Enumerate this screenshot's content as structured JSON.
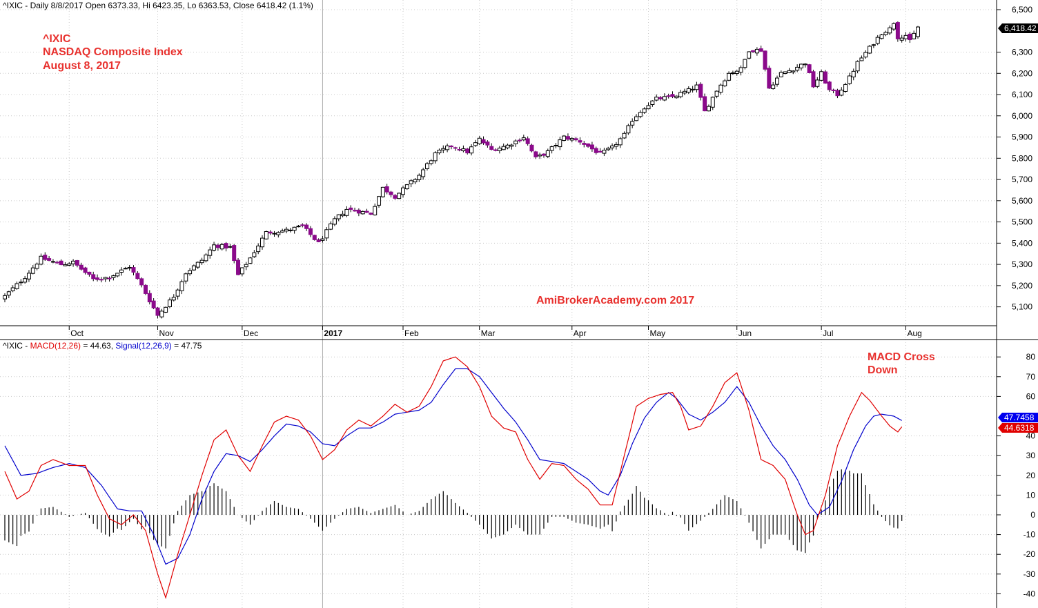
{
  "colors": {
    "candle_down": "#8b0a8b",
    "candle_up": "#ffffff",
    "candle_edge": "#000000",
    "annotation_red": "#e8312e",
    "macd_line": "#e00000",
    "signal_line": "#0000cc",
    "histogram": "#000000",
    "grid": "#c8c8c8",
    "label_macd_bg": "#e00000",
    "label_signal_bg": "#0000ee",
    "label_price_bg": "#000000"
  },
  "header": {
    "price_info": "^IXIC - Daily 8/8/2017 Open 6373.33, Hi 6423.35, Lo 6363.53, Close 6418.42 (1.1%)",
    "macd_prefix": "^IXIC - ",
    "macd_name": "MACD(12,26)",
    "macd_value": " = 44.63, ",
    "signal_name": "Signal(12,26,9)",
    "signal_value": " = 47.75"
  },
  "annotations": {
    "symbol": "^IXIC",
    "index_name": "NASDAQ Composite Index",
    "date": "August 8, 2017",
    "watermark": "AmiBrokerAcademy.com  2017",
    "macd_note_line1": "MACD Cross",
    "macd_note_line2": "Down"
  },
  "last_labels": {
    "price": "6,418.42",
    "signal": "47.7458",
    "macd": "44.6318"
  },
  "chart_data": [
    {
      "type": "candlestick",
      "title": "^IXIC - Daily 8/8/2017 Open 6373.33, Hi 6423.35, Lo 6363.53, Close 6418.42 (1.1%)",
      "ylim": [
        5020,
        6560
      ],
      "y_ticks": [
        5100,
        5200,
        5300,
        5400,
        5500,
        5600,
        5700,
        5800,
        5900,
        6000,
        6100,
        6200,
        6300,
        6500
      ],
      "y_tick_labels": [
        "5,100",
        "5,200",
        "5,300",
        "5,400",
        "5,500",
        "5,600",
        "5,700",
        "5,800",
        "5,900",
        "6,000",
        "6,100",
        "6,200",
        "6,300",
        "6,500"
      ],
      "month_labels": [
        {
          "label": "Oct",
          "index": 16
        },
        {
          "label": "Nov",
          "index": 38
        },
        {
          "label": "Dec",
          "index": 59
        },
        {
          "label": "2017",
          "index": 79
        },
        {
          "label": "Feb",
          "index": 99
        },
        {
          "label": "Mar",
          "index": 118
        },
        {
          "label": "Apr",
          "index": 141
        },
        {
          "label": "May",
          "index": 160
        },
        {
          "label": "Jun",
          "index": 182
        },
        {
          "label": "Jul",
          "index": 203
        },
        {
          "label": "Aug",
          "index": 224
        }
      ],
      "year_separator_index": 79,
      "anchors": [
        {
          "i": 0,
          "c": 5150
        },
        {
          "i": 5,
          "c": 5240
        },
        {
          "i": 9,
          "c": 5330
        },
        {
          "i": 14,
          "c": 5300
        },
        {
          "i": 17,
          "c": 5310
        },
        {
          "i": 22,
          "c": 5230
        },
        {
          "i": 26,
          "c": 5240
        },
        {
          "i": 31,
          "c": 5290
        },
        {
          "i": 34,
          "c": 5200
        },
        {
          "i": 38,
          "c": 5060
        },
        {
          "i": 42,
          "c": 5150
        },
        {
          "i": 45,
          "c": 5260
        },
        {
          "i": 49,
          "c": 5320
        },
        {
          "i": 52,
          "c": 5390
        },
        {
          "i": 56,
          "c": 5380
        },
        {
          "i": 58,
          "c": 5250
        },
        {
          "i": 61,
          "c": 5330
        },
        {
          "i": 65,
          "c": 5450
        },
        {
          "i": 70,
          "c": 5460
        },
        {
          "i": 74,
          "c": 5480
        },
        {
          "i": 78,
          "c": 5400
        },
        {
          "i": 82,
          "c": 5510
        },
        {
          "i": 85,
          "c": 5560
        },
        {
          "i": 88,
          "c": 5550
        },
        {
          "i": 91,
          "c": 5540
        },
        {
          "i": 94,
          "c": 5660
        },
        {
          "i": 97,
          "c": 5620
        },
        {
          "i": 100,
          "c": 5670
        },
        {
          "i": 103,
          "c": 5720
        },
        {
          "i": 107,
          "c": 5820
        },
        {
          "i": 111,
          "c": 5860
        },
        {
          "i": 115,
          "c": 5830
        },
        {
          "i": 118,
          "c": 5890
        },
        {
          "i": 121,
          "c": 5840
        },
        {
          "i": 125,
          "c": 5860
        },
        {
          "i": 129,
          "c": 5900
        },
        {
          "i": 132,
          "c": 5800
        },
        {
          "i": 135,
          "c": 5830
        },
        {
          "i": 139,
          "c": 5900
        },
        {
          "i": 143,
          "c": 5880
        },
        {
          "i": 148,
          "c": 5820
        },
        {
          "i": 151,
          "c": 5850
        },
        {
          "i": 154,
          "c": 5910
        },
        {
          "i": 156,
          "c": 5980
        },
        {
          "i": 159,
          "c": 6040
        },
        {
          "i": 162,
          "c": 6080
        },
        {
          "i": 166,
          "c": 6090
        },
        {
          "i": 170,
          "c": 6120
        },
        {
          "i": 172,
          "c": 6140
        },
        {
          "i": 174,
          "c": 6020
        },
        {
          "i": 177,
          "c": 6120
        },
        {
          "i": 180,
          "c": 6200
        },
        {
          "i": 183,
          "c": 6220
        },
        {
          "i": 185,
          "c": 6310
        },
        {
          "i": 188,
          "c": 6310
        },
        {
          "i": 190,
          "c": 6130
        },
        {
          "i": 193,
          "c": 6200
        },
        {
          "i": 196,
          "c": 6220
        },
        {
          "i": 199,
          "c": 6250
        },
        {
          "i": 201,
          "c": 6140
        },
        {
          "i": 203,
          "c": 6200
        },
        {
          "i": 205,
          "c": 6120
        },
        {
          "i": 207,
          "c": 6100
        },
        {
          "i": 210,
          "c": 6180
        },
        {
          "i": 212,
          "c": 6250
        },
        {
          "i": 215,
          "c": 6320
        },
        {
          "i": 218,
          "c": 6390
        },
        {
          "i": 220,
          "c": 6410
        },
        {
          "i": 221,
          "c": 6440
        },
        {
          "i": 222,
          "c": 6370
        },
        {
          "i": 224,
          "c": 6380
        },
        {
          "i": 225,
          "c": 6350
        },
        {
          "i": 227,
          "c": 6418
        }
      ],
      "last_bar": {
        "open": 6373.33,
        "high": 6423.35,
        "low": 6363.53,
        "close": 6418.42
      }
    },
    {
      "type": "line",
      "title": "^IXIC - MACD(12,26) = 44.63, Signal(12,26,9) = 47.75",
      "ylim": [
        -45,
        85
      ],
      "y_ticks": [
        -40,
        -30,
        -20,
        -10,
        0,
        10,
        20,
        30,
        40,
        60,
        70,
        80
      ],
      "series": [
        {
          "name": "MACD(12,26)",
          "anchors": [
            {
              "i": 0,
              "v": 22
            },
            {
              "i": 3,
              "v": 8
            },
            {
              "i": 6,
              "v": 12
            },
            {
              "i": 9,
              "v": 25
            },
            {
              "i": 12,
              "v": 28
            },
            {
              "i": 16,
              "v": 25
            },
            {
              "i": 20,
              "v": 25
            },
            {
              "i": 23,
              "v": 10
            },
            {
              "i": 26,
              "v": -2
            },
            {
              "i": 29,
              "v": -5
            },
            {
              "i": 32,
              "v": 0
            },
            {
              "i": 35,
              "v": -8
            },
            {
              "i": 38,
              "v": -30
            },
            {
              "i": 40,
              "v": -42
            },
            {
              "i": 43,
              "v": -20
            },
            {
              "i": 46,
              "v": 0
            },
            {
              "i": 49,
              "v": 20
            },
            {
              "i": 52,
              "v": 38
            },
            {
              "i": 55,
              "v": 43
            },
            {
              "i": 58,
              "v": 30
            },
            {
              "i": 61,
              "v": 22
            },
            {
              "i": 64,
              "v": 35
            },
            {
              "i": 67,
              "v": 47
            },
            {
              "i": 70,
              "v": 50
            },
            {
              "i": 73,
              "v": 48
            },
            {
              "i": 76,
              "v": 40
            },
            {
              "i": 79,
              "v": 28
            },
            {
              "i": 82,
              "v": 33
            },
            {
              "i": 85,
              "v": 43
            },
            {
              "i": 88,
              "v": 48
            },
            {
              "i": 91,
              "v": 45
            },
            {
              "i": 94,
              "v": 50
            },
            {
              "i": 97,
              "v": 56
            },
            {
              "i": 100,
              "v": 52
            },
            {
              "i": 103,
              "v": 55
            },
            {
              "i": 106,
              "v": 65
            },
            {
              "i": 109,
              "v": 78
            },
            {
              "i": 112,
              "v": 80
            },
            {
              "i": 115,
              "v": 75
            },
            {
              "i": 118,
              "v": 65
            },
            {
              "i": 121,
              "v": 50
            },
            {
              "i": 124,
              "v": 44
            },
            {
              "i": 127,
              "v": 42
            },
            {
              "i": 130,
              "v": 28
            },
            {
              "i": 133,
              "v": 18
            },
            {
              "i": 136,
              "v": 26
            },
            {
              "i": 139,
              "v": 25
            },
            {
              "i": 142,
              "v": 18
            },
            {
              "i": 145,
              "v": 13
            },
            {
              "i": 148,
              "v": 5
            },
            {
              "i": 151,
              "v": 5
            },
            {
              "i": 154,
              "v": 30
            },
            {
              "i": 157,
              "v": 55
            },
            {
              "i": 160,
              "v": 59
            },
            {
              "i": 163,
              "v": 61
            },
            {
              "i": 166,
              "v": 62
            },
            {
              "i": 168,
              "v": 55
            },
            {
              "i": 170,
              "v": 43
            },
            {
              "i": 173,
              "v": 45
            },
            {
              "i": 176,
              "v": 55
            },
            {
              "i": 179,
              "v": 67
            },
            {
              "i": 182,
              "v": 72
            },
            {
              "i": 185,
              "v": 53
            },
            {
              "i": 188,
              "v": 28
            },
            {
              "i": 191,
              "v": 25
            },
            {
              "i": 194,
              "v": 18
            },
            {
              "i": 197,
              "v": 0
            },
            {
              "i": 199,
              "v": -10
            },
            {
              "i": 201,
              "v": -8
            },
            {
              "i": 204,
              "v": 10
            },
            {
              "i": 207,
              "v": 35
            },
            {
              "i": 210,
              "v": 50
            },
            {
              "i": 213,
              "v": 62
            },
            {
              "i": 215,
              "v": 58
            },
            {
              "i": 218,
              "v": 50
            },
            {
              "i": 220,
              "v": 45
            },
            {
              "i": 222,
              "v": 42
            },
            {
              "i": 223,
              "v": 44.63
            }
          ]
        },
        {
          "name": "Signal(12,26,9)",
          "anchors": [
            {
              "i": 0,
              "v": 35
            },
            {
              "i": 4,
              "v": 20
            },
            {
              "i": 8,
              "v": 21
            },
            {
              "i": 12,
              "v": 24
            },
            {
              "i": 16,
              "v": 26
            },
            {
              "i": 20,
              "v": 24
            },
            {
              "i": 24,
              "v": 15
            },
            {
              "i": 28,
              "v": 3
            },
            {
              "i": 31,
              "v": 2
            },
            {
              "i": 34,
              "v": 2
            },
            {
              "i": 37,
              "v": -10
            },
            {
              "i": 40,
              "v": -25
            },
            {
              "i": 43,
              "v": -22
            },
            {
              "i": 46,
              "v": -10
            },
            {
              "i": 49,
              "v": 8
            },
            {
              "i": 52,
              "v": 22
            },
            {
              "i": 55,
              "v": 31
            },
            {
              "i": 58,
              "v": 30
            },
            {
              "i": 61,
              "v": 27
            },
            {
              "i": 64,
              "v": 33
            },
            {
              "i": 67,
              "v": 40
            },
            {
              "i": 70,
              "v": 46
            },
            {
              "i": 73,
              "v": 45
            },
            {
              "i": 76,
              "v": 42
            },
            {
              "i": 79,
              "v": 36
            },
            {
              "i": 82,
              "v": 35
            },
            {
              "i": 85,
              "v": 40
            },
            {
              "i": 88,
              "v": 44
            },
            {
              "i": 91,
              "v": 44
            },
            {
              "i": 94,
              "v": 47
            },
            {
              "i": 97,
              "v": 51
            },
            {
              "i": 100,
              "v": 52
            },
            {
              "i": 103,
              "v": 53
            },
            {
              "i": 106,
              "v": 57
            },
            {
              "i": 109,
              "v": 66
            },
            {
              "i": 112,
              "v": 74
            },
            {
              "i": 115,
              "v": 74
            },
            {
              "i": 118,
              "v": 70
            },
            {
              "i": 121,
              "v": 62
            },
            {
              "i": 124,
              "v": 54
            },
            {
              "i": 127,
              "v": 47
            },
            {
              "i": 130,
              "v": 38
            },
            {
              "i": 133,
              "v": 28
            },
            {
              "i": 136,
              "v": 27
            },
            {
              "i": 139,
              "v": 26
            },
            {
              "i": 142,
              "v": 22
            },
            {
              "i": 145,
              "v": 18
            },
            {
              "i": 148,
              "v": 12
            },
            {
              "i": 150,
              "v": 10
            },
            {
              "i": 153,
              "v": 20
            },
            {
              "i": 156,
              "v": 36
            },
            {
              "i": 159,
              "v": 49
            },
            {
              "i": 162,
              "v": 57
            },
            {
              "i": 165,
              "v": 62
            },
            {
              "i": 167,
              "v": 59
            },
            {
              "i": 170,
              "v": 51
            },
            {
              "i": 173,
              "v": 48
            },
            {
              "i": 176,
              "v": 52
            },
            {
              "i": 179,
              "v": 57
            },
            {
              "i": 182,
              "v": 65
            },
            {
              "i": 185,
              "v": 57
            },
            {
              "i": 188,
              "v": 45
            },
            {
              "i": 191,
              "v": 35
            },
            {
              "i": 194,
              "v": 28
            },
            {
              "i": 197,
              "v": 18
            },
            {
              "i": 200,
              "v": 5
            },
            {
              "i": 202,
              "v": 0
            },
            {
              "i": 205,
              "v": 4
            },
            {
              "i": 208,
              "v": 17
            },
            {
              "i": 211,
              "v": 33
            },
            {
              "i": 214,
              "v": 45
            },
            {
              "i": 216,
              "v": 50
            },
            {
              "i": 218,
              "v": 51
            },
            {
              "i": 221,
              "v": 50
            },
            {
              "i": 223,
              "v": 47.75
            }
          ]
        }
      ],
      "histogram": {
        "name": "MACD - Signal",
        "values": "MACD minus Signal, drawn as vertical bars from 0"
      }
    }
  ]
}
